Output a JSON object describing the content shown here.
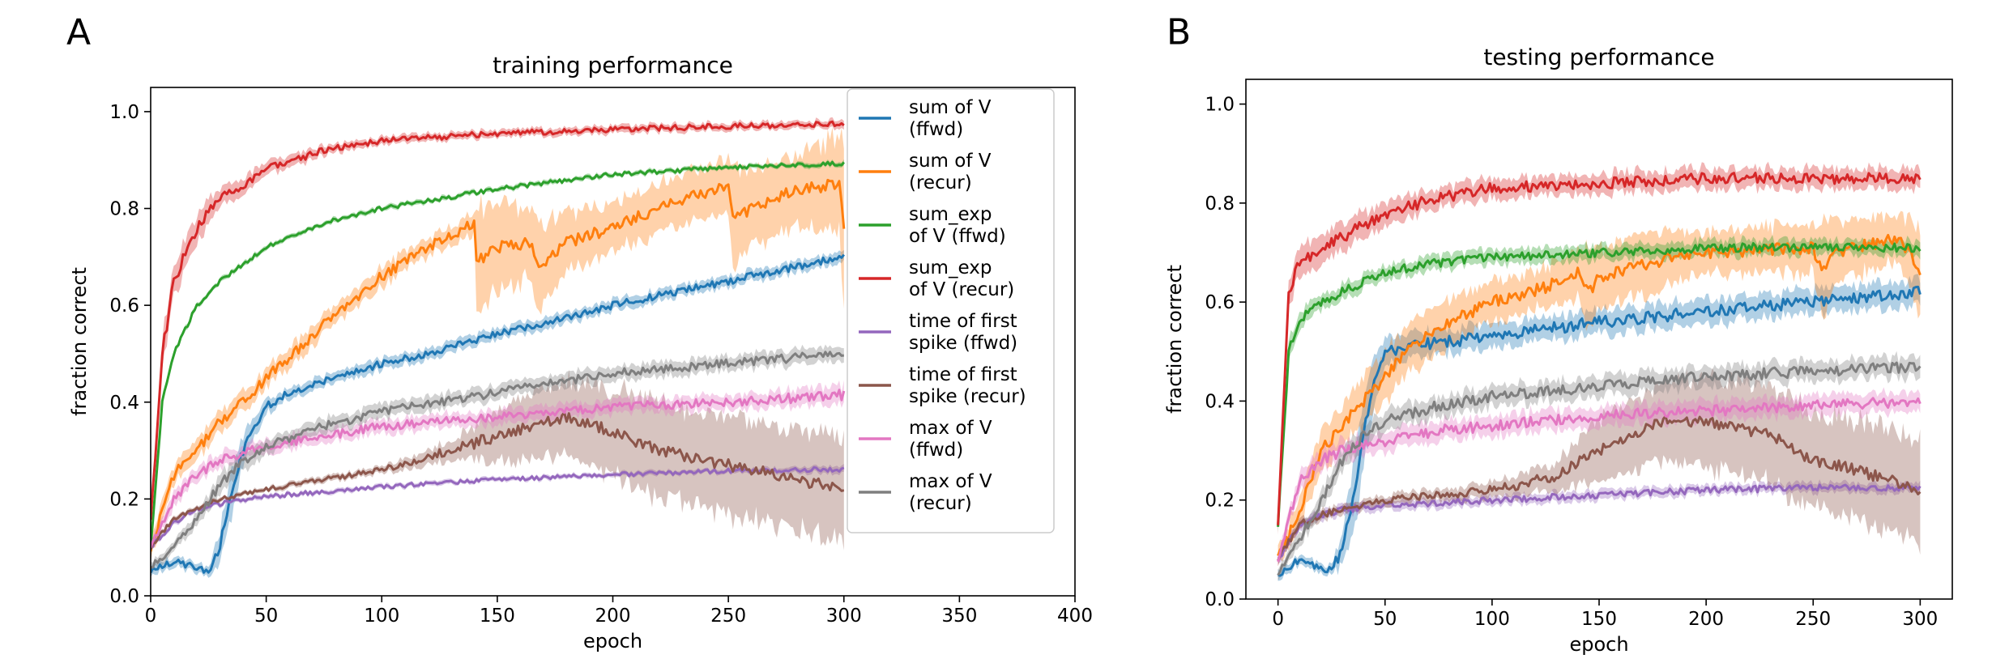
{
  "chart_data": [
    {
      "panel": "A",
      "type": "line",
      "title": "training performance",
      "xlabel": "epoch",
      "ylabel": "fraction correct",
      "xlim": [
        0,
        400
      ],
      "ylim": [
        0.0,
        1.05
      ],
      "xticks": [
        0,
        50,
        100,
        150,
        200,
        250,
        300,
        350,
        400
      ],
      "yticks": [
        0.0,
        0.2,
        0.4,
        0.6,
        0.8,
        1.0
      ],
      "xtick_labels": [
        "0",
        "50",
        "100",
        "150",
        "200",
        "250",
        "300",
        "350",
        "400"
      ],
      "ytick_labels": [
        "0.0",
        "0.2",
        "0.4",
        "0.6",
        "0.8",
        "1.0"
      ],
      "legend_position": "upper-right",
      "grid": false,
      "series": [
        {
          "name": "sum of V (ffwd)",
          "legend_lines": [
            "sum of V",
            "(ffwd)"
          ],
          "color": "#1f77b4",
          "x": [
            0,
            10,
            20,
            25,
            30,
            35,
            40,
            45,
            50,
            60,
            80,
            100,
            120,
            150,
            200,
            250,
            300
          ],
          "y": [
            0.05,
            0.07,
            0.06,
            0.05,
            0.1,
            0.22,
            0.3,
            0.35,
            0.39,
            0.42,
            0.45,
            0.48,
            0.5,
            0.54,
            0.6,
            0.65,
            0.7
          ],
          "band": [
            0.01,
            0.01,
            0.01,
            0.01,
            0.03,
            0.05,
            0.03,
            0.02,
            0.015,
            0.012,
            0.012,
            0.012,
            0.012,
            0.012,
            0.012,
            0.012,
            0.012
          ]
        },
        {
          "name": "sum of V (recur)",
          "legend_lines": [
            "sum of V",
            "(recur)"
          ],
          "color": "#ff7f0e",
          "x": [
            0,
            10,
            20,
            30,
            40,
            50,
            75,
            100,
            120,
            140,
            141,
            150,
            165,
            168,
            180,
            200,
            220,
            250,
            252,
            260,
            280,
            298,
            300
          ],
          "y": [
            0.1,
            0.25,
            0.3,
            0.36,
            0.4,
            0.45,
            0.56,
            0.66,
            0.72,
            0.77,
            0.69,
            0.72,
            0.73,
            0.68,
            0.73,
            0.76,
            0.8,
            0.85,
            0.78,
            0.8,
            0.84,
            0.85,
            0.76
          ],
          "band": [
            0.02,
            0.02,
            0.02,
            0.02,
            0.02,
            0.02,
            0.02,
            0.02,
            0.02,
            0.02,
            0.11,
            0.09,
            0.07,
            0.09,
            0.06,
            0.05,
            0.05,
            0.06,
            0.1,
            0.08,
            0.07,
            0.1,
            0.2
          ]
        },
        {
          "name": "sum_exp of V (ffwd)",
          "legend_lines": [
            "sum_exp",
            "of V (ffwd)"
          ],
          "color": "#2ca02c",
          "x": [
            0,
            5,
            10,
            20,
            30,
            50,
            75,
            100,
            150,
            200,
            250,
            300
          ],
          "y": [
            0.1,
            0.4,
            0.5,
            0.6,
            0.65,
            0.72,
            0.77,
            0.8,
            0.84,
            0.87,
            0.885,
            0.893
          ],
          "band": [
            0.005,
            0.005,
            0.005,
            0.005,
            0.005,
            0.005,
            0.005,
            0.005,
            0.005,
            0.005,
            0.005,
            0.005
          ]
        },
        {
          "name": "sum_exp of V (recur)",
          "legend_lines": [
            "sum_exp",
            "of V (recur)"
          ],
          "color": "#d62728",
          "x": [
            0,
            5,
            10,
            20,
            30,
            50,
            75,
            100,
            150,
            200,
            250,
            300
          ],
          "y": [
            0.15,
            0.5,
            0.65,
            0.76,
            0.82,
            0.88,
            0.92,
            0.94,
            0.955,
            0.963,
            0.97,
            0.975
          ],
          "band": [
            0.02,
            0.03,
            0.03,
            0.03,
            0.02,
            0.015,
            0.01,
            0.008,
            0.008,
            0.008,
            0.008,
            0.008
          ]
        },
        {
          "name": "time of first spike (ffwd)",
          "legend_lines": [
            "time of first",
            "spike (ffwd)"
          ],
          "color": "#9467bd",
          "x": [
            0,
            10,
            20,
            30,
            50,
            100,
            150,
            200,
            250,
            300
          ],
          "y": [
            0.1,
            0.15,
            0.18,
            0.19,
            0.205,
            0.225,
            0.24,
            0.25,
            0.258,
            0.262
          ],
          "band": [
            0.005,
            0.005,
            0.005,
            0.005,
            0.005,
            0.005,
            0.005,
            0.005,
            0.005,
            0.008
          ]
        },
        {
          "name": "time of first spike (recur)",
          "legend_lines": [
            "time of first",
            "spike (recur)"
          ],
          "color": "#8c564b",
          "x": [
            0,
            10,
            20,
            30,
            50,
            100,
            130,
            150,
            180,
            200,
            220,
            250,
            270,
            300
          ],
          "y": [
            0.1,
            0.16,
            0.18,
            0.2,
            0.22,
            0.26,
            0.3,
            0.33,
            0.37,
            0.34,
            0.3,
            0.27,
            0.25,
            0.22
          ],
          "band": [
            0.005,
            0.005,
            0.005,
            0.005,
            0.005,
            0.008,
            0.02,
            0.05,
            0.08,
            0.09,
            0.1,
            0.1,
            0.1,
            0.11
          ]
        },
        {
          "name": "max of V (ffwd)",
          "legend_lines": [
            "max of V",
            "(ffwd)"
          ],
          "color": "#e377c2",
          "x": [
            0,
            10,
            20,
            30,
            50,
            75,
            100,
            150,
            200,
            250,
            300
          ],
          "y": [
            0.1,
            0.2,
            0.25,
            0.28,
            0.31,
            0.33,
            0.35,
            0.37,
            0.39,
            0.4,
            0.415
          ],
          "band": [
            0.01,
            0.015,
            0.015,
            0.015,
            0.015,
            0.015,
            0.015,
            0.015,
            0.015,
            0.015,
            0.02
          ]
        },
        {
          "name": "max of V (recur)",
          "legend_lines": [
            "max of V",
            "(recur)"
          ],
          "color": "#7f7f7f",
          "x": [
            0,
            10,
            20,
            30,
            40,
            50,
            75,
            100,
            150,
            200,
            250,
            300
          ],
          "y": [
            0.06,
            0.1,
            0.16,
            0.23,
            0.28,
            0.31,
            0.35,
            0.38,
            0.42,
            0.46,
            0.48,
            0.5
          ],
          "band": [
            0.01,
            0.01,
            0.015,
            0.02,
            0.02,
            0.015,
            0.015,
            0.015,
            0.015,
            0.015,
            0.015,
            0.015
          ]
        }
      ]
    },
    {
      "panel": "B",
      "type": "line",
      "title": "testing performance",
      "xlabel": "epoch",
      "ylabel": "fraction correct",
      "xlim": [
        -15,
        315
      ],
      "ylim": [
        0.0,
        1.05
      ],
      "xticks": [
        0,
        50,
        100,
        150,
        200,
        250,
        300
      ],
      "yticks": [
        0.0,
        0.2,
        0.4,
        0.6,
        0.8,
        1.0
      ],
      "xtick_labels": [
        "0",
        "50",
        "100",
        "150",
        "200",
        "250",
        "300"
      ],
      "ytick_labels": [
        "0.0",
        "0.2",
        "0.4",
        "0.6",
        "0.8",
        "1.0"
      ],
      "grid": false,
      "series": [
        {
          "name": "sum of V (ffwd)",
          "color": "#1f77b4",
          "x": [
            0,
            10,
            20,
            25,
            30,
            35,
            40,
            45,
            50,
            60,
            80,
            100,
            150,
            200,
            250,
            300
          ],
          "y": [
            0.05,
            0.08,
            0.06,
            0.06,
            0.1,
            0.2,
            0.33,
            0.45,
            0.5,
            0.51,
            0.52,
            0.53,
            0.56,
            0.58,
            0.6,
            0.62
          ],
          "band": [
            0.01,
            0.01,
            0.01,
            0.01,
            0.03,
            0.07,
            0.07,
            0.05,
            0.03,
            0.025,
            0.025,
            0.025,
            0.025,
            0.025,
            0.025,
            0.025
          ]
        },
        {
          "name": "sum of V (recur)",
          "color": "#ff7f0e",
          "x": [
            0,
            10,
            20,
            30,
            40,
            50,
            60,
            75,
            100,
            125,
            140,
            145,
            150,
            175,
            200,
            250,
            254,
            260,
            290,
            300
          ],
          "y": [
            0.08,
            0.18,
            0.3,
            0.35,
            0.4,
            0.45,
            0.5,
            0.55,
            0.6,
            0.63,
            0.66,
            0.62,
            0.65,
            0.68,
            0.7,
            0.71,
            0.66,
            0.7,
            0.73,
            0.66
          ],
          "band": [
            0.02,
            0.03,
            0.04,
            0.04,
            0.05,
            0.05,
            0.05,
            0.05,
            0.04,
            0.04,
            0.05,
            0.09,
            0.06,
            0.06,
            0.04,
            0.05,
            0.1,
            0.06,
            0.05,
            0.09
          ]
        },
        {
          "name": "sum_exp of V (ffwd)",
          "color": "#2ca02c",
          "x": [
            0,
            5,
            10,
            20,
            30,
            50,
            75,
            100,
            150,
            200,
            250,
            300
          ],
          "y": [
            0.15,
            0.5,
            0.56,
            0.6,
            0.62,
            0.66,
            0.68,
            0.69,
            0.7,
            0.71,
            0.71,
            0.71
          ],
          "band": [
            0.01,
            0.02,
            0.02,
            0.015,
            0.015,
            0.015,
            0.015,
            0.015,
            0.015,
            0.015,
            0.015,
            0.015
          ]
        },
        {
          "name": "sum_exp of V (recur)",
          "color": "#d62728",
          "x": [
            0,
            5,
            10,
            20,
            30,
            50,
            75,
            100,
            150,
            200,
            250,
            300
          ],
          "y": [
            0.15,
            0.62,
            0.68,
            0.71,
            0.73,
            0.78,
            0.81,
            0.83,
            0.84,
            0.85,
            0.85,
            0.85
          ],
          "band": [
            0.02,
            0.03,
            0.03,
            0.03,
            0.03,
            0.025,
            0.02,
            0.02,
            0.02,
            0.02,
            0.02,
            0.02
          ]
        },
        {
          "name": "time of first spike (ffwd)",
          "color": "#9467bd",
          "x": [
            0,
            10,
            20,
            30,
            50,
            100,
            150,
            200,
            250,
            300
          ],
          "y": [
            0.08,
            0.15,
            0.17,
            0.18,
            0.19,
            0.2,
            0.21,
            0.22,
            0.225,
            0.225
          ],
          "band": [
            0.01,
            0.01,
            0.01,
            0.01,
            0.01,
            0.01,
            0.01,
            0.01,
            0.01,
            0.01
          ]
        },
        {
          "name": "time of first spike (recur)",
          "color": "#8c564b",
          "x": [
            0,
            10,
            20,
            30,
            50,
            100,
            130,
            150,
            180,
            200,
            230,
            250,
            270,
            300
          ],
          "y": [
            0.08,
            0.15,
            0.17,
            0.18,
            0.2,
            0.22,
            0.25,
            0.3,
            0.36,
            0.36,
            0.33,
            0.28,
            0.26,
            0.22
          ],
          "band": [
            0.01,
            0.01,
            0.01,
            0.01,
            0.01,
            0.015,
            0.03,
            0.06,
            0.08,
            0.09,
            0.1,
            0.1,
            0.1,
            0.11
          ]
        },
        {
          "name": "max of V (ffwd)",
          "color": "#e377c2",
          "x": [
            0,
            10,
            20,
            30,
            50,
            75,
            100,
            150,
            200,
            250,
            300
          ],
          "y": [
            0.08,
            0.24,
            0.28,
            0.3,
            0.32,
            0.34,
            0.35,
            0.37,
            0.38,
            0.39,
            0.4
          ],
          "band": [
            0.01,
            0.02,
            0.02,
            0.02,
            0.02,
            0.02,
            0.02,
            0.02,
            0.02,
            0.02,
            0.02
          ]
        },
        {
          "name": "max of V (recur)",
          "color": "#7f7f7f",
          "x": [
            0,
            10,
            20,
            30,
            40,
            50,
            75,
            100,
            150,
            200,
            250,
            300
          ],
          "y": [
            0.05,
            0.12,
            0.2,
            0.28,
            0.33,
            0.36,
            0.39,
            0.41,
            0.43,
            0.45,
            0.46,
            0.47
          ],
          "band": [
            0.01,
            0.015,
            0.02,
            0.02,
            0.02,
            0.02,
            0.02,
            0.02,
            0.02,
            0.02,
            0.02,
            0.02
          ]
        }
      ]
    }
  ]
}
